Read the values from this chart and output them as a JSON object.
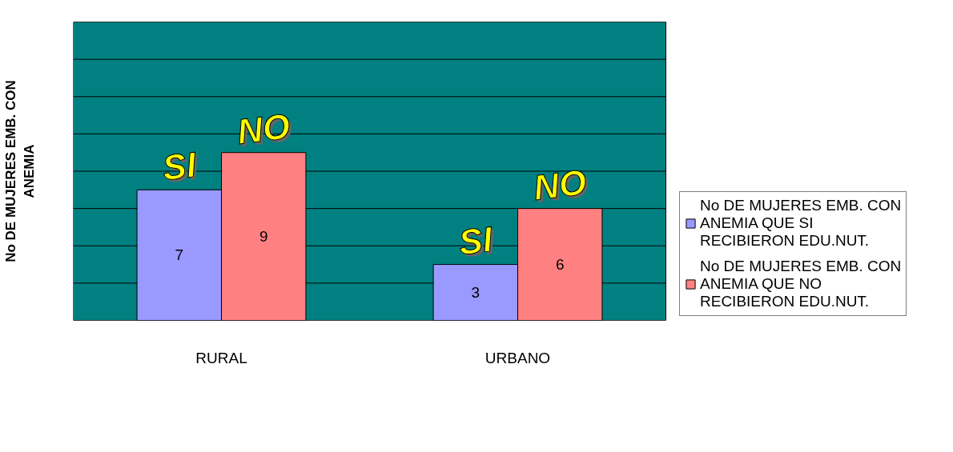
{
  "chart_data": {
    "type": "bar",
    "ylabel": "No DE MUJERES EMB. CON ANEMIA",
    "categories": [
      "RURAL",
      "URBANO"
    ],
    "series": [
      {
        "name": "No DE MUJERES EMB. CON ANEMIA QUE SI RECIBIERON EDU.NUT.",
        "color": "#9999ff",
        "values": [
          7,
          3
        ]
      },
      {
        "name": "No DE MUJERES EMB. CON ANEMIA QUE NO RECIBIERON EDU.NUT.",
        "color": "#ff8080",
        "values": [
          9,
          6
        ]
      }
    ],
    "ylim": [
      0,
      16
    ],
    "yticks": [
      {
        "value": 0,
        "label": null
      },
      {
        "value": 2,
        "label": null
      },
      {
        "value": 4,
        "label": null
      },
      {
        "value": 6,
        "label": null
      },
      {
        "value": 8,
        "label": null
      },
      {
        "value": 10,
        "label": null
      },
      {
        "value": 12,
        "label": null
      },
      {
        "value": 14,
        "label": null
      },
      {
        "value": 16,
        "label": null
      }
    ],
    "tick_labels": "x",
    "grid": "y",
    "legend": "right",
    "data_labels": true,
    "annotations": [
      "SI",
      "NO",
      "SI",
      "NO"
    ]
  }
}
